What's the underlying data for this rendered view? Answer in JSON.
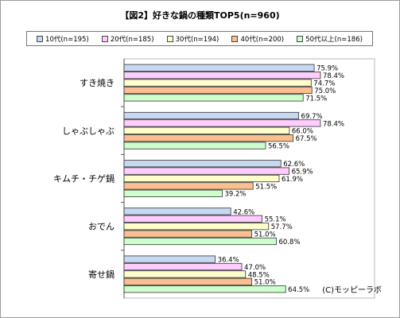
{
  "chart_data": {
    "type": "bar",
    "orientation": "horizontal",
    "title": "【図2】好きな鍋の種類TOP5(n=960)",
    "categories": [
      "すき焼き",
      "しゃぶしゃぶ",
      "キムチ・チゲ鍋",
      "おでん",
      "寄せ鍋"
    ],
    "series": [
      {
        "name": "10代(n=195)",
        "color": "#c6d9f1",
        "values": [
          75.9,
          69.7,
          62.6,
          42.6,
          36.4
        ],
        "labels": [
          "75.9%",
          "69.7%",
          "62.6%",
          "42.6%",
          "36.4%"
        ]
      },
      {
        "name": "20代(n=185)",
        "color": "#ffccff",
        "values": [
          78.4,
          78.4,
          65.9,
          55.1,
          47.0
        ],
        "labels": [
          "78.4%",
          "78.4%",
          "65.9%",
          "55.1%",
          "47.0%"
        ]
      },
      {
        "name": "30代(n=194)",
        "color": "#ffffcc",
        "values": [
          74.7,
          66.0,
          61.9,
          57.7,
          48.5
        ],
        "labels": [
          "74.7%",
          "66.0%",
          "61.9%",
          "57.7%",
          "48.5%"
        ]
      },
      {
        "name": "40代(n=200)",
        "color": "#f9bf8f",
        "values": [
          75.0,
          67.5,
          51.5,
          51.0,
          51.0
        ],
        "labels": [
          "75.0%",
          "67.5%",
          "51.5%",
          "51.0%",
          "51.0%"
        ]
      },
      {
        "name": "50代以上(n=186)",
        "color": "#ccffcc",
        "values": [
          71.5,
          56.5,
          39.2,
          60.8,
          64.5
        ],
        "labels": [
          "71.5%",
          "56.5%",
          "39.2%",
          "60.8%",
          "64.5%"
        ]
      }
    ],
    "xlim": [
      0,
      100
    ],
    "grid": false,
    "legend_position": "top"
  },
  "credit": "(C)モッピーラボ",
  "bar_border_color": "#333333"
}
